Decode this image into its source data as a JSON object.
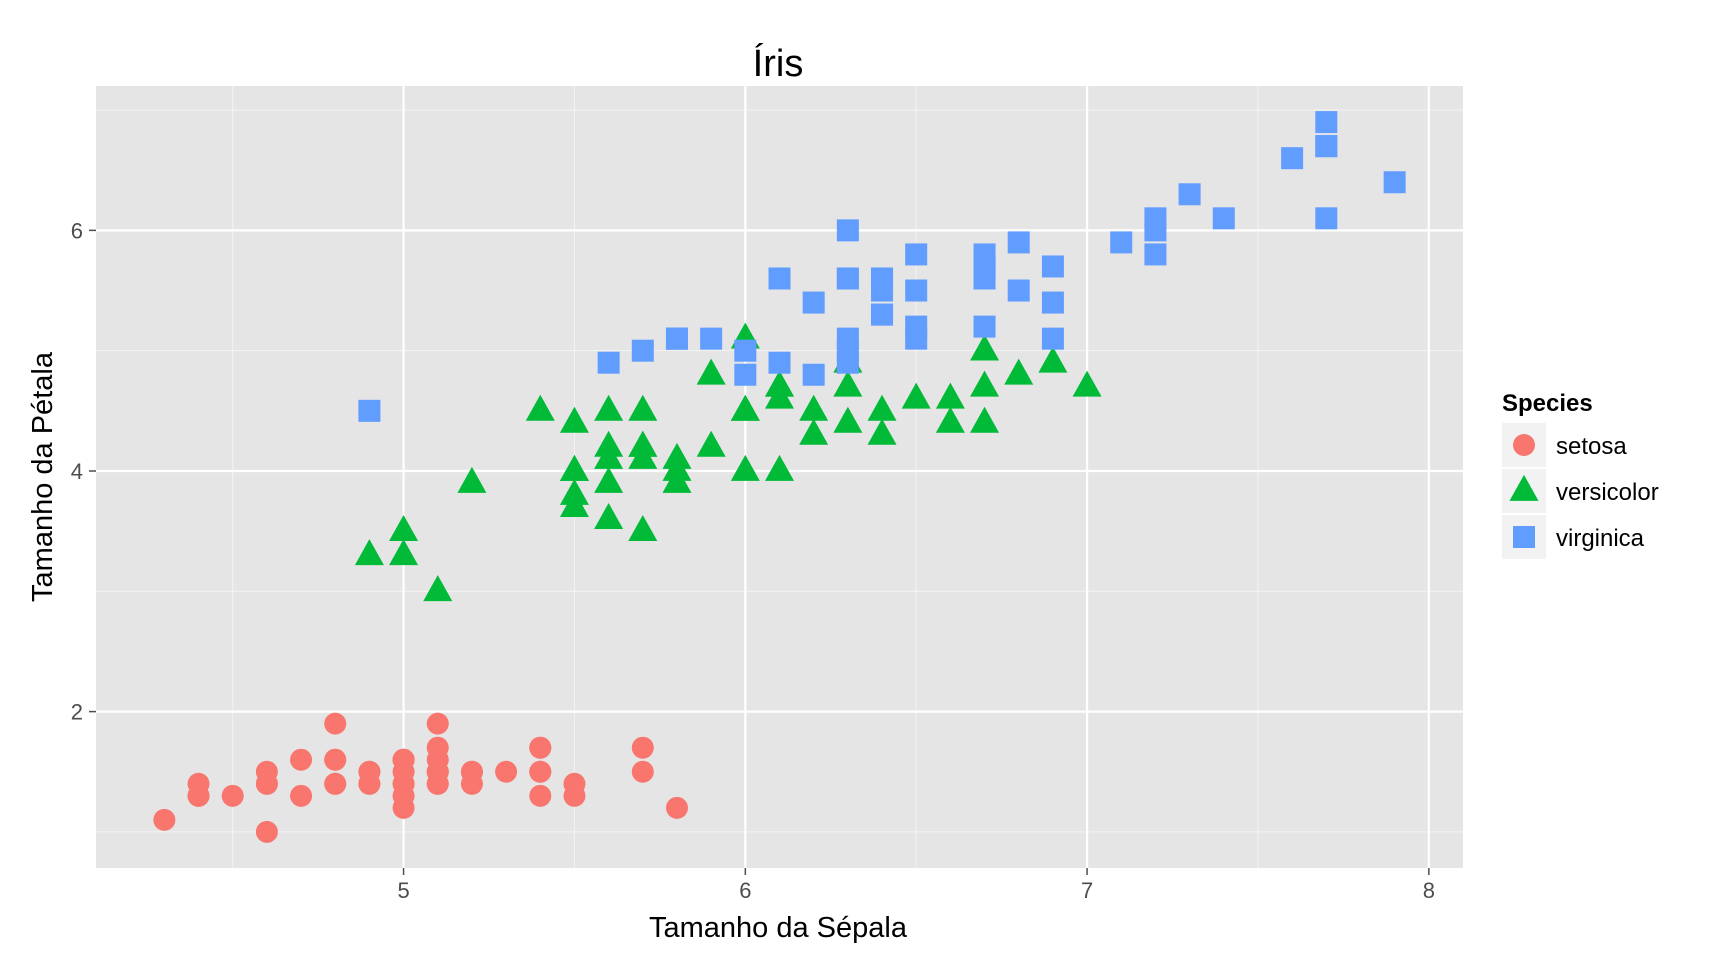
{
  "chart_data": {
    "type": "scatter",
    "title": "Íris",
    "xlabel": "Tamanho da Sépala",
    "ylabel": "Tamanho da Pétala",
    "xlim": [
      4.1,
      8.1
    ],
    "ylim": [
      0.7,
      7.2
    ],
    "xticks": [
      {
        "value": 5,
        "label": "5"
      },
      {
        "value": 6,
        "label": "6"
      },
      {
        "value": 7,
        "label": "7"
      },
      {
        "value": 8,
        "label": "8"
      }
    ],
    "yticks": [
      {
        "value": 2,
        "label": "2"
      },
      {
        "value": 4,
        "label": "4"
      },
      {
        "value": 6,
        "label": "6"
      }
    ],
    "grid": true,
    "panel_background": "#e5e5e5",
    "grid_color": "#ffffff",
    "legend": {
      "title": "Species",
      "position": "right"
    },
    "series": [
      {
        "name": "setosa",
        "shape": "circle",
        "color": "#f8766d",
        "points": [
          [
            5.1,
            1.4
          ],
          [
            4.9,
            1.4
          ],
          [
            4.7,
            1.3
          ],
          [
            4.6,
            1.5
          ],
          [
            5.0,
            1.4
          ],
          [
            5.4,
            1.7
          ],
          [
            4.6,
            1.4
          ],
          [
            5.0,
            1.5
          ],
          [
            4.4,
            1.4
          ],
          [
            4.9,
            1.5
          ],
          [
            5.4,
            1.5
          ],
          [
            4.8,
            1.6
          ],
          [
            4.8,
            1.4
          ],
          [
            4.3,
            1.1
          ],
          [
            5.8,
            1.2
          ],
          [
            5.7,
            1.5
          ],
          [
            5.4,
            1.3
          ],
          [
            5.1,
            1.4
          ],
          [
            5.7,
            1.7
          ],
          [
            5.1,
            1.5
          ],
          [
            5.4,
            1.7
          ],
          [
            5.1,
            1.5
          ],
          [
            4.6,
            1.0
          ],
          [
            5.1,
            1.7
          ],
          [
            4.8,
            1.9
          ],
          [
            5.0,
            1.6
          ],
          [
            5.0,
            1.6
          ],
          [
            5.2,
            1.5
          ],
          [
            5.2,
            1.4
          ],
          [
            4.7,
            1.6
          ],
          [
            4.8,
            1.6
          ],
          [
            5.4,
            1.5
          ],
          [
            5.2,
            1.5
          ],
          [
            5.5,
            1.4
          ],
          [
            4.9,
            1.5
          ],
          [
            5.0,
            1.2
          ],
          [
            5.5,
            1.3
          ],
          [
            4.9,
            1.4
          ],
          [
            4.4,
            1.3
          ],
          [
            5.1,
            1.5
          ],
          [
            5.0,
            1.3
          ],
          [
            4.5,
            1.3
          ],
          [
            4.4,
            1.3
          ],
          [
            5.0,
            1.6
          ],
          [
            5.1,
            1.9
          ],
          [
            4.8,
            1.4
          ],
          [
            5.1,
            1.6
          ],
          [
            4.6,
            1.4
          ],
          [
            5.3,
            1.5
          ],
          [
            5.0,
            1.4
          ]
        ]
      },
      {
        "name": "versicolor",
        "shape": "triangle",
        "color": "#00ba38",
        "points": [
          [
            7.0,
            4.7
          ],
          [
            6.4,
            4.5
          ],
          [
            6.9,
            4.9
          ],
          [
            5.5,
            4.0
          ],
          [
            6.5,
            4.6
          ],
          [
            5.7,
            4.5
          ],
          [
            6.3,
            4.7
          ],
          [
            4.9,
            3.3
          ],
          [
            6.6,
            4.6
          ],
          [
            5.2,
            3.9
          ],
          [
            5.0,
            3.5
          ],
          [
            5.9,
            4.2
          ],
          [
            6.0,
            4.0
          ],
          [
            6.1,
            4.7
          ],
          [
            5.6,
            3.6
          ],
          [
            6.7,
            4.4
          ],
          [
            5.6,
            4.5
          ],
          [
            5.8,
            4.1
          ],
          [
            6.2,
            4.5
          ],
          [
            5.6,
            3.9
          ],
          [
            5.9,
            4.8
          ],
          [
            6.1,
            4.0
          ],
          [
            6.3,
            4.9
          ],
          [
            6.1,
            4.7
          ],
          [
            6.4,
            4.3
          ],
          [
            6.6,
            4.4
          ],
          [
            6.8,
            4.8
          ],
          [
            6.7,
            5.0
          ],
          [
            6.0,
            4.5
          ],
          [
            5.7,
            3.5
          ],
          [
            5.5,
            3.8
          ],
          [
            5.5,
            3.7
          ],
          [
            5.8,
            3.9
          ],
          [
            6.0,
            5.1
          ],
          [
            5.4,
            4.5
          ],
          [
            6.0,
            4.5
          ],
          [
            6.7,
            4.7
          ],
          [
            6.3,
            4.4
          ],
          [
            5.6,
            4.1
          ],
          [
            5.5,
            4.0
          ],
          [
            5.5,
            4.4
          ],
          [
            6.1,
            4.6
          ],
          [
            5.8,
            4.0
          ],
          [
            5.0,
            3.3
          ],
          [
            5.6,
            4.2
          ],
          [
            5.7,
            4.2
          ],
          [
            5.7,
            4.2
          ],
          [
            6.2,
            4.3
          ],
          [
            5.1,
            3.0
          ],
          [
            5.7,
            4.1
          ]
        ]
      },
      {
        "name": "virginica",
        "shape": "square",
        "color": "#619cff",
        "points": [
          [
            6.3,
            6.0
          ],
          [
            5.8,
            5.1
          ],
          [
            7.1,
            5.9
          ],
          [
            6.3,
            5.6
          ],
          [
            6.5,
            5.8
          ],
          [
            7.6,
            6.6
          ],
          [
            4.9,
            4.5
          ],
          [
            7.3,
            6.3
          ],
          [
            6.7,
            5.8
          ],
          [
            7.2,
            6.1
          ],
          [
            6.5,
            5.1
          ],
          [
            6.4,
            5.3
          ],
          [
            6.8,
            5.5
          ],
          [
            5.7,
            5.0
          ],
          [
            5.8,
            5.1
          ],
          [
            6.4,
            5.3
          ],
          [
            6.5,
            5.5
          ],
          [
            7.7,
            6.7
          ],
          [
            7.7,
            6.9
          ],
          [
            6.0,
            5.0
          ],
          [
            6.9,
            5.7
          ],
          [
            5.6,
            4.9
          ],
          [
            7.7,
            6.7
          ],
          [
            6.3,
            4.9
          ],
          [
            6.7,
            5.7
          ],
          [
            7.2,
            6.0
          ],
          [
            6.2,
            4.8
          ],
          [
            6.1,
            4.9
          ],
          [
            6.4,
            5.6
          ],
          [
            7.2,
            5.8
          ],
          [
            7.4,
            6.1
          ],
          [
            7.9,
            6.4
          ],
          [
            6.4,
            5.6
          ],
          [
            6.3,
            5.1
          ],
          [
            6.1,
            5.6
          ],
          [
            7.7,
            6.1
          ],
          [
            6.3,
            5.6
          ],
          [
            6.4,
            5.5
          ],
          [
            6.0,
            4.8
          ],
          [
            6.9,
            5.4
          ],
          [
            6.7,
            5.6
          ],
          [
            6.9,
            5.1
          ],
          [
            5.8,
            5.1
          ],
          [
            6.8,
            5.9
          ],
          [
            6.7,
            5.7
          ],
          [
            6.7,
            5.2
          ],
          [
            6.3,
            5.0
          ],
          [
            6.5,
            5.2
          ],
          [
            6.2,
            5.4
          ],
          [
            5.9,
            5.1
          ]
        ]
      }
    ]
  }
}
